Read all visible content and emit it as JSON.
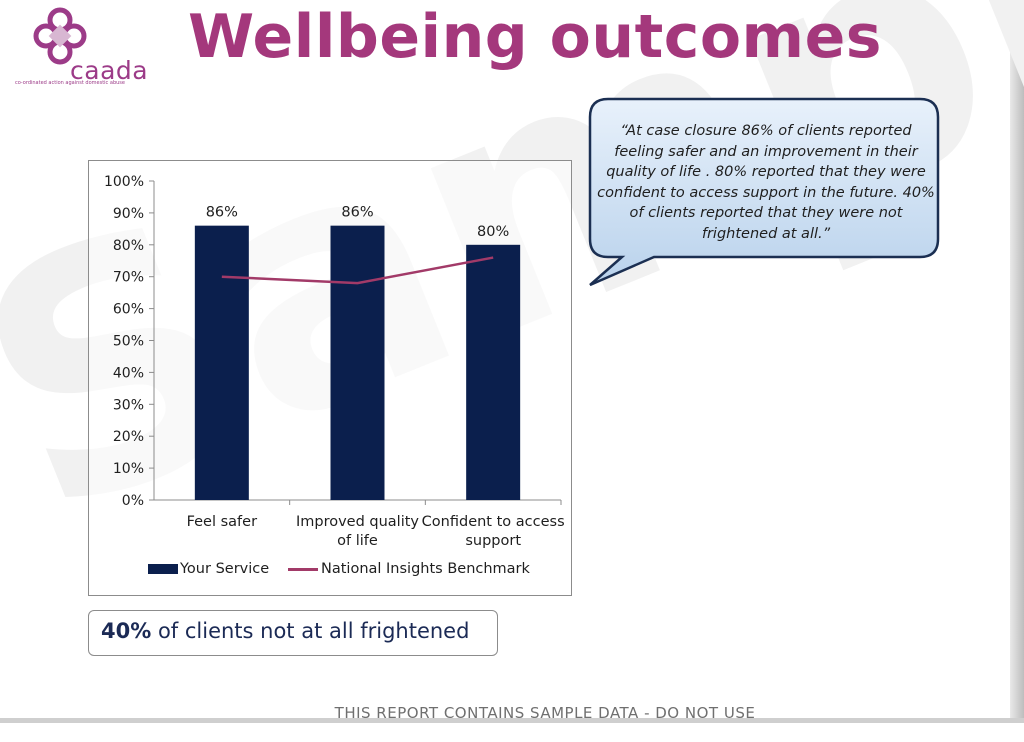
{
  "logo": {
    "wordmark": "caada",
    "tagline": "co-ordinated action against domestic abuse"
  },
  "title": "Wellbeing outcomes",
  "watermark": "Sample",
  "callout": {
    "text": "“At case closure 86% of clients reported feeling safer and an improvement in their quality of life . 80% reported that they were confident to access support in the future. 40% of clients reported that they were not frightened at all.”"
  },
  "stat": {
    "value": "40%",
    "text": " of clients not at all frightened"
  },
  "footer": "THIS REPORT CONTAINS SAMPLE DATA - DO NOT USE",
  "colors": {
    "title": "#a4387c",
    "bar": "#0b1f4d",
    "benchmark_line": "#a23a68",
    "callout_fill": "#c9ddf1"
  },
  "chart_data": {
    "type": "bar",
    "categories": [
      [
        "Feel safer"
      ],
      [
        "Improved quality",
        "of life"
      ],
      [
        "Confident to access",
        "support"
      ]
    ],
    "series": [
      {
        "name": "Your Service",
        "type": "bar",
        "values": [
          86,
          86,
          80
        ],
        "labels": [
          "86%",
          "86%",
          "80%"
        ]
      },
      {
        "name": "National Insights Benchmark",
        "type": "line",
        "values": [
          70,
          68,
          76
        ]
      }
    ],
    "ylim": [
      0,
      100
    ],
    "yticks": [
      0,
      10,
      20,
      30,
      40,
      50,
      60,
      70,
      80,
      90,
      100
    ],
    "ytick_labels": [
      "0%",
      "10%",
      "20%",
      "30%",
      "40%",
      "50%",
      "60%",
      "70%",
      "80%",
      "90%",
      "100%"
    ],
    "legend": "bottom",
    "grid": false
  }
}
